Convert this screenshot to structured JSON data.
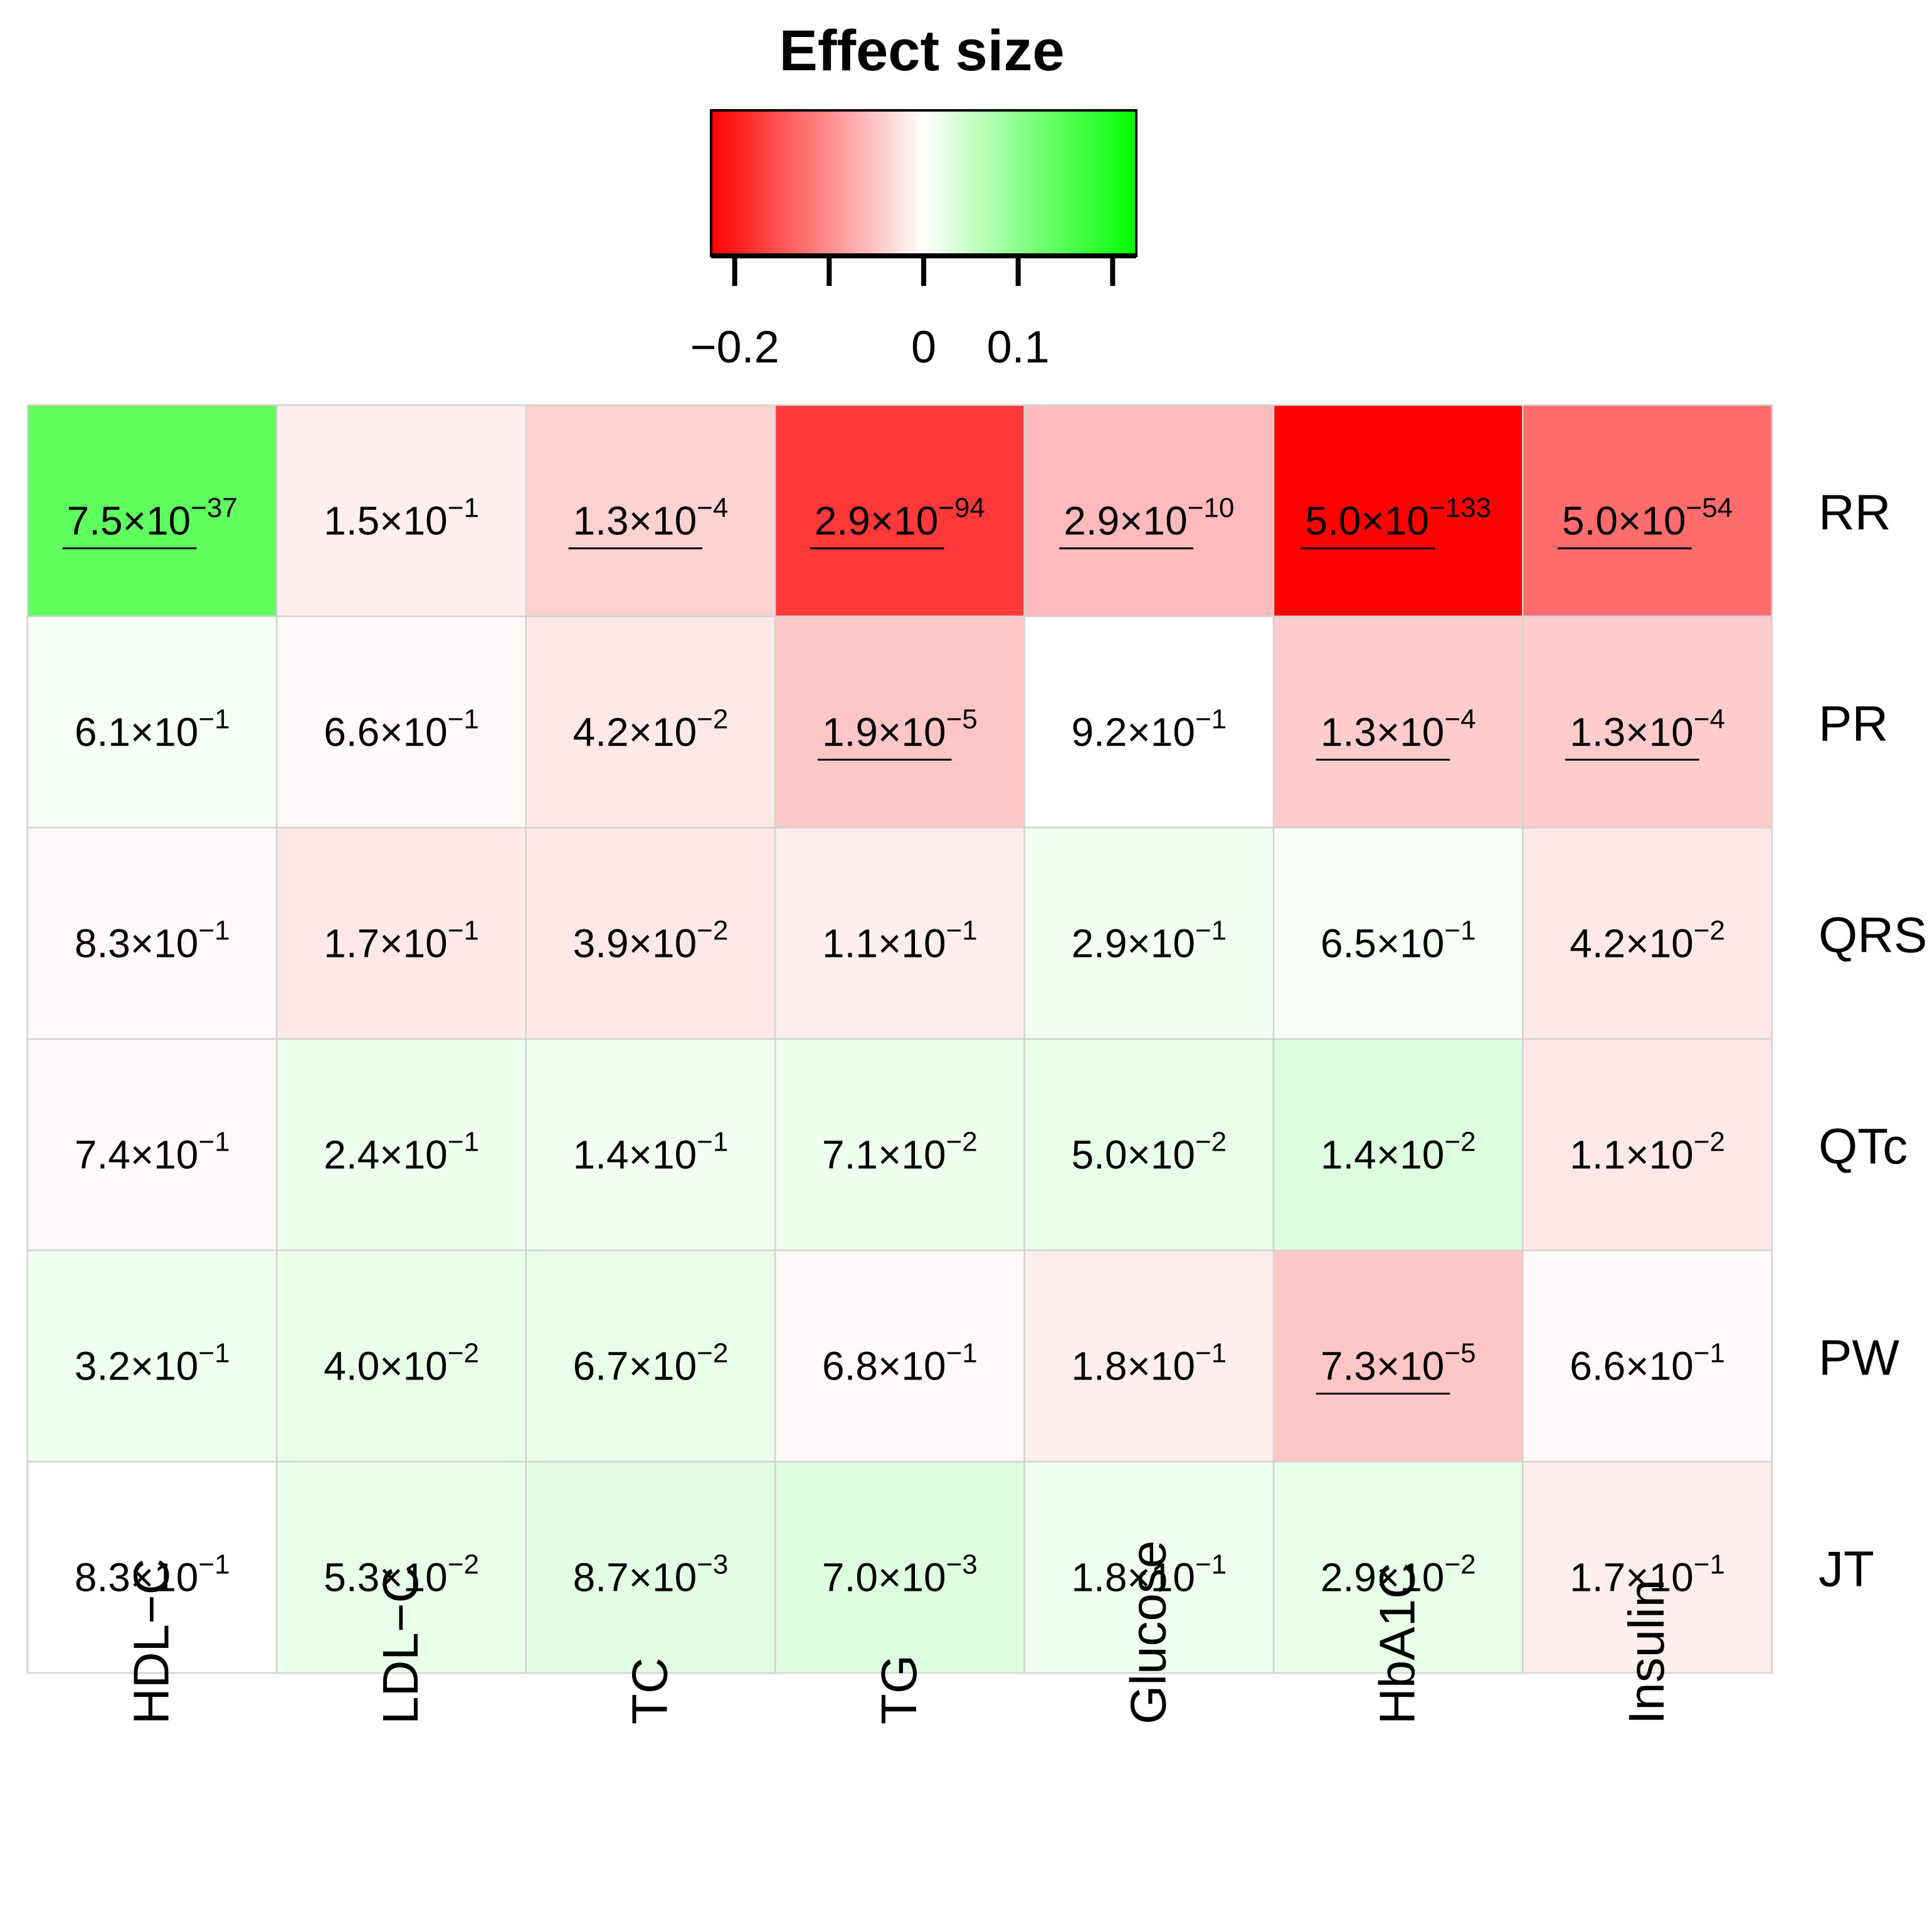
{
  "chart_data": {
    "type": "heatmap",
    "title": "Effect size",
    "legend": {
      "placement": "top-center",
      "color_low": "#ff0000",
      "color_mid": "#ffffff",
      "color_high": "#00ff00",
      "range": [
        -0.225,
        0.225
      ],
      "ticks": [
        -0.2,
        -0.1,
        0,
        0.1,
        0.2
      ],
      "tick_labels": [
        "−0.2",
        "",
        "0",
        "0.1",
        ""
      ]
    },
    "rows": [
      "RR",
      "PR",
      "QRS",
      "QTc",
      "PW",
      "JT"
    ],
    "columns": [
      "HDL−C",
      "LDL−C",
      "TC",
      "TG",
      "Glucose",
      "HbA1C",
      "Insulin"
    ],
    "effect_size": [
      [
        0.14,
        -0.015,
        -0.04,
        -0.175,
        -0.06,
        -0.225,
        -0.13
      ],
      [
        0.008,
        -0.005,
        -0.02,
        -0.05,
        0.0,
        -0.045,
        -0.045
      ],
      [
        -0.005,
        -0.02,
        -0.02,
        -0.015,
        0.01,
        0.005,
        -0.02
      ],
      [
        -0.005,
        0.015,
        0.01,
        0.015,
        0.02,
        0.03,
        -0.02
      ],
      [
        0.012,
        0.02,
        0.02,
        -0.005,
        -0.015,
        -0.05,
        -0.005
      ],
      [
        0.0,
        0.02,
        0.025,
        0.03,
        0.012,
        0.02,
        -0.015
      ]
    ],
    "p_values": [
      [
        {
          "m": "7.5",
          "e": "−37"
        },
        {
          "m": "1.5",
          "e": "−1"
        },
        {
          "m": "1.3",
          "e": "−4"
        },
        {
          "m": "2.9",
          "e": "−94"
        },
        {
          "m": "2.9",
          "e": "−10"
        },
        {
          "m": "5.0",
          "e": "−133"
        },
        {
          "m": "5.0",
          "e": "−54"
        }
      ],
      [
        {
          "m": "6.1",
          "e": "−1"
        },
        {
          "m": "6.6",
          "e": "−1"
        },
        {
          "m": "4.2",
          "e": "−2"
        },
        {
          "m": "1.9",
          "e": "−5"
        },
        {
          "m": "9.2",
          "e": "−1"
        },
        {
          "m": "1.3",
          "e": "−4"
        },
        {
          "m": "1.3",
          "e": "−4"
        }
      ],
      [
        {
          "m": "8.3",
          "e": "−1"
        },
        {
          "m": "1.7",
          "e": "−1"
        },
        {
          "m": "3.9",
          "e": "−2"
        },
        {
          "m": "1.1",
          "e": "−1"
        },
        {
          "m": "2.9",
          "e": "−1"
        },
        {
          "m": "6.5",
          "e": "−1"
        },
        {
          "m": "4.2",
          "e": "−2"
        }
      ],
      [
        {
          "m": "7.4",
          "e": "−1"
        },
        {
          "m": "2.4",
          "e": "−1"
        },
        {
          "m": "1.4",
          "e": "−1"
        },
        {
          "m": "7.1",
          "e": "−2"
        },
        {
          "m": "5.0",
          "e": "−2"
        },
        {
          "m": "1.4",
          "e": "−2"
        },
        {
          "m": "1.1",
          "e": "−2"
        }
      ],
      [
        {
          "m": "3.2",
          "e": "−1"
        },
        {
          "m": "4.0",
          "e": "−2"
        },
        {
          "m": "6.7",
          "e": "−2"
        },
        {
          "m": "6.8",
          "e": "−1"
        },
        {
          "m": "1.8",
          "e": "−1"
        },
        {
          "m": "7.3",
          "e": "−5"
        },
        {
          "m": "6.6",
          "e": "−1"
        }
      ],
      [
        {
          "m": "8.3",
          "e": "−1"
        },
        {
          "m": "5.3",
          "e": "−2"
        },
        {
          "m": "8.7",
          "e": "−3"
        },
        {
          "m": "7.0",
          "e": "−3"
        },
        {
          "m": "1.8",
          "e": "−1"
        },
        {
          "m": "2.9",
          "e": "−2"
        },
        {
          "m": "1.7",
          "e": "−1"
        }
      ]
    ],
    "underlined": [
      [
        true,
        false,
        true,
        true,
        true,
        true,
        true
      ],
      [
        false,
        false,
        false,
        true,
        false,
        true,
        true
      ],
      [
        false,
        false,
        false,
        false,
        false,
        false,
        false
      ],
      [
        false,
        false,
        false,
        false,
        false,
        false,
        false
      ],
      [
        false,
        false,
        false,
        false,
        false,
        true,
        false
      ],
      [
        false,
        false,
        false,
        false,
        false,
        false,
        false
      ]
    ],
    "grid_color": "#d3d3d3"
  }
}
